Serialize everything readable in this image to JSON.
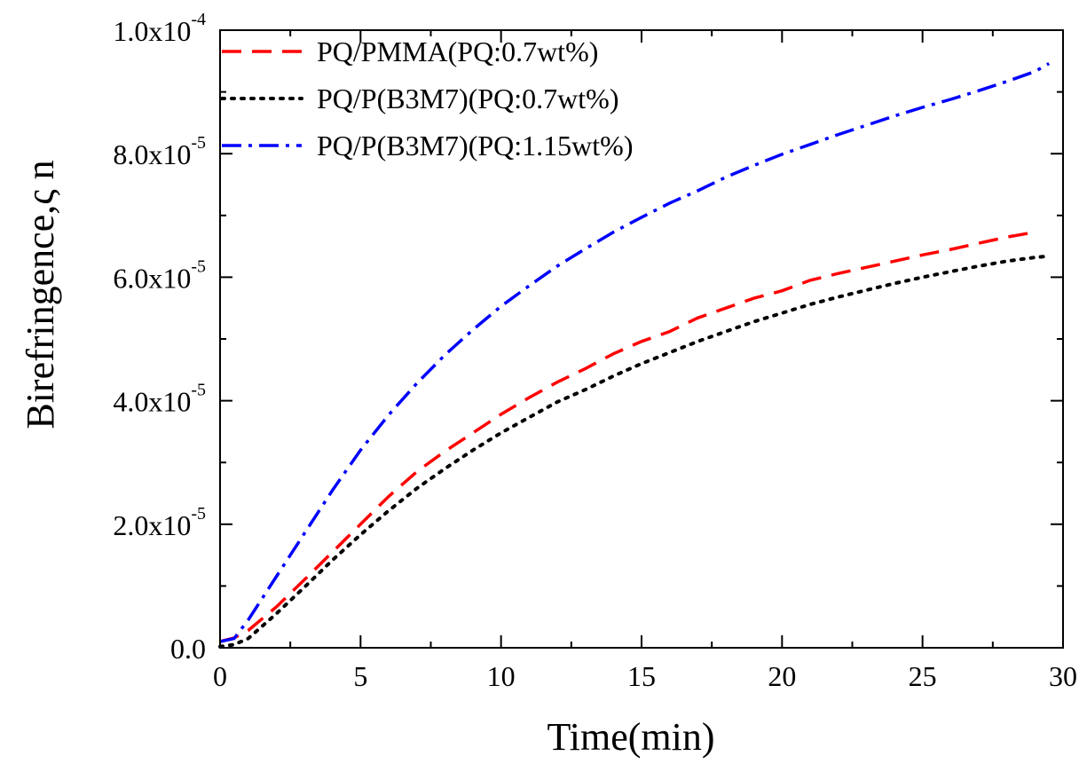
{
  "chart_data": {
    "type": "line",
    "xlabel": "Time(min)",
    "ylabel": "Birefringence,ς n",
    "xlim": [
      0,
      30
    ],
    "ylim": [
      0,
      0.0001
    ],
    "x_ticks": [
      {
        "value": 0,
        "label": "0"
      },
      {
        "value": 5,
        "label": "5"
      },
      {
        "value": 10,
        "label": "10"
      },
      {
        "value": 15,
        "label": "15"
      },
      {
        "value": 20,
        "label": "20"
      },
      {
        "value": 25,
        "label": "25"
      },
      {
        "value": 30,
        "label": "30"
      }
    ],
    "y_ticks": [
      {
        "value": 0,
        "mantissa": "0.0",
        "exponent": ""
      },
      {
        "value": 2e-05,
        "mantissa": "2.0x10",
        "exponent": "-5"
      },
      {
        "value": 4e-05,
        "mantissa": "4.0x10",
        "exponent": "-5"
      },
      {
        "value": 6e-05,
        "mantissa": "6.0x10",
        "exponent": "-5"
      },
      {
        "value": 8e-05,
        "mantissa": "8.0x10",
        "exponent": "-5"
      },
      {
        "value": 0.0001,
        "mantissa": "1.0x10",
        "exponent": "-4"
      }
    ],
    "grid": false,
    "legend_position": "top-left",
    "series": [
      {
        "name": "PQ/PMMA(PQ:0.7wt%)",
        "color": "#ff0000",
        "dash": "dash",
        "x": [
          0,
          0.5,
          1,
          2,
          3,
          4,
          5,
          6,
          7,
          8,
          9,
          10,
          11,
          12,
          13,
          14,
          15,
          16,
          17,
          18,
          19,
          20,
          21,
          22,
          23,
          24,
          25,
          26,
          27,
          28,
          29
        ],
        "y": [
          1e-06,
          1.6e-06,
          2.8e-06,
          6.6e-06,
          1.1e-05,
          1.55e-05,
          2e-05,
          2.45e-05,
          2.85e-05,
          3.18e-05,
          3.48e-05,
          3.78e-05,
          4.05e-05,
          4.3e-05,
          4.52e-05,
          4.76e-05,
          4.96e-05,
          5.12e-05,
          5.34e-05,
          5.5e-05,
          5.66e-05,
          5.78e-05,
          5.95e-05,
          6.06e-05,
          6.16e-05,
          6.26e-05,
          6.36e-05,
          6.45e-05,
          6.55e-05,
          6.65e-05,
          6.73e-05
        ]
      },
      {
        "name": "PQ/P(B3M7)(PQ:0.7wt%)",
        "color": "#000000",
        "dash": "dot",
        "x": [
          0,
          0.5,
          1,
          2,
          3,
          4,
          5,
          6,
          7,
          8,
          9,
          10,
          11,
          12,
          13,
          14,
          15,
          16,
          17,
          18,
          19,
          20,
          21,
          22,
          23,
          24,
          25,
          26,
          27,
          28,
          29,
          29.5
        ],
        "y": [
          2e-07,
          5e-07,
          1.5e-06,
          5.5e-06,
          9.8e-06,
          1.42e-05,
          1.83e-05,
          2.22e-05,
          2.58e-05,
          2.9e-05,
          3.2e-05,
          3.48e-05,
          3.73e-05,
          3.98e-05,
          4.18e-05,
          4.4e-05,
          4.6e-05,
          4.78e-05,
          4.96e-05,
          5.12e-05,
          5.28e-05,
          5.42e-05,
          5.56e-05,
          5.68e-05,
          5.79e-05,
          5.9e-05,
          6e-05,
          6.09e-05,
          6.18e-05,
          6.26e-05,
          6.32e-05,
          6.34e-05
        ]
      },
      {
        "name": "PQ/P(B3M7)(PQ:1.15wt%)",
        "color": "#0000ff",
        "dash": "dashdot",
        "x": [
          0,
          0.5,
          1,
          2,
          3,
          4,
          5,
          6,
          7,
          8,
          9,
          10,
          11,
          12,
          13,
          14,
          15,
          16,
          17,
          18,
          19,
          20,
          21,
          22,
          23,
          24,
          25,
          26,
          27,
          28,
          29,
          29.5
        ],
        "y": [
          1e-06,
          1.5e-06,
          4.5e-06,
          1.15e-05,
          1.85e-05,
          2.55e-05,
          3.2e-05,
          3.77e-05,
          4.28e-05,
          4.74e-05,
          5.15e-05,
          5.53e-05,
          5.86e-05,
          6.18e-05,
          6.46e-05,
          6.73e-05,
          6.97e-05,
          7.2e-05,
          7.4e-05,
          7.62e-05,
          7.81e-05,
          7.99e-05,
          8.15e-05,
          8.31e-05,
          8.46e-05,
          8.61e-05,
          8.75e-05,
          8.88e-05,
          9.02e-05,
          9.17e-05,
          9.33e-05,
          9.46e-05
        ]
      }
    ]
  }
}
